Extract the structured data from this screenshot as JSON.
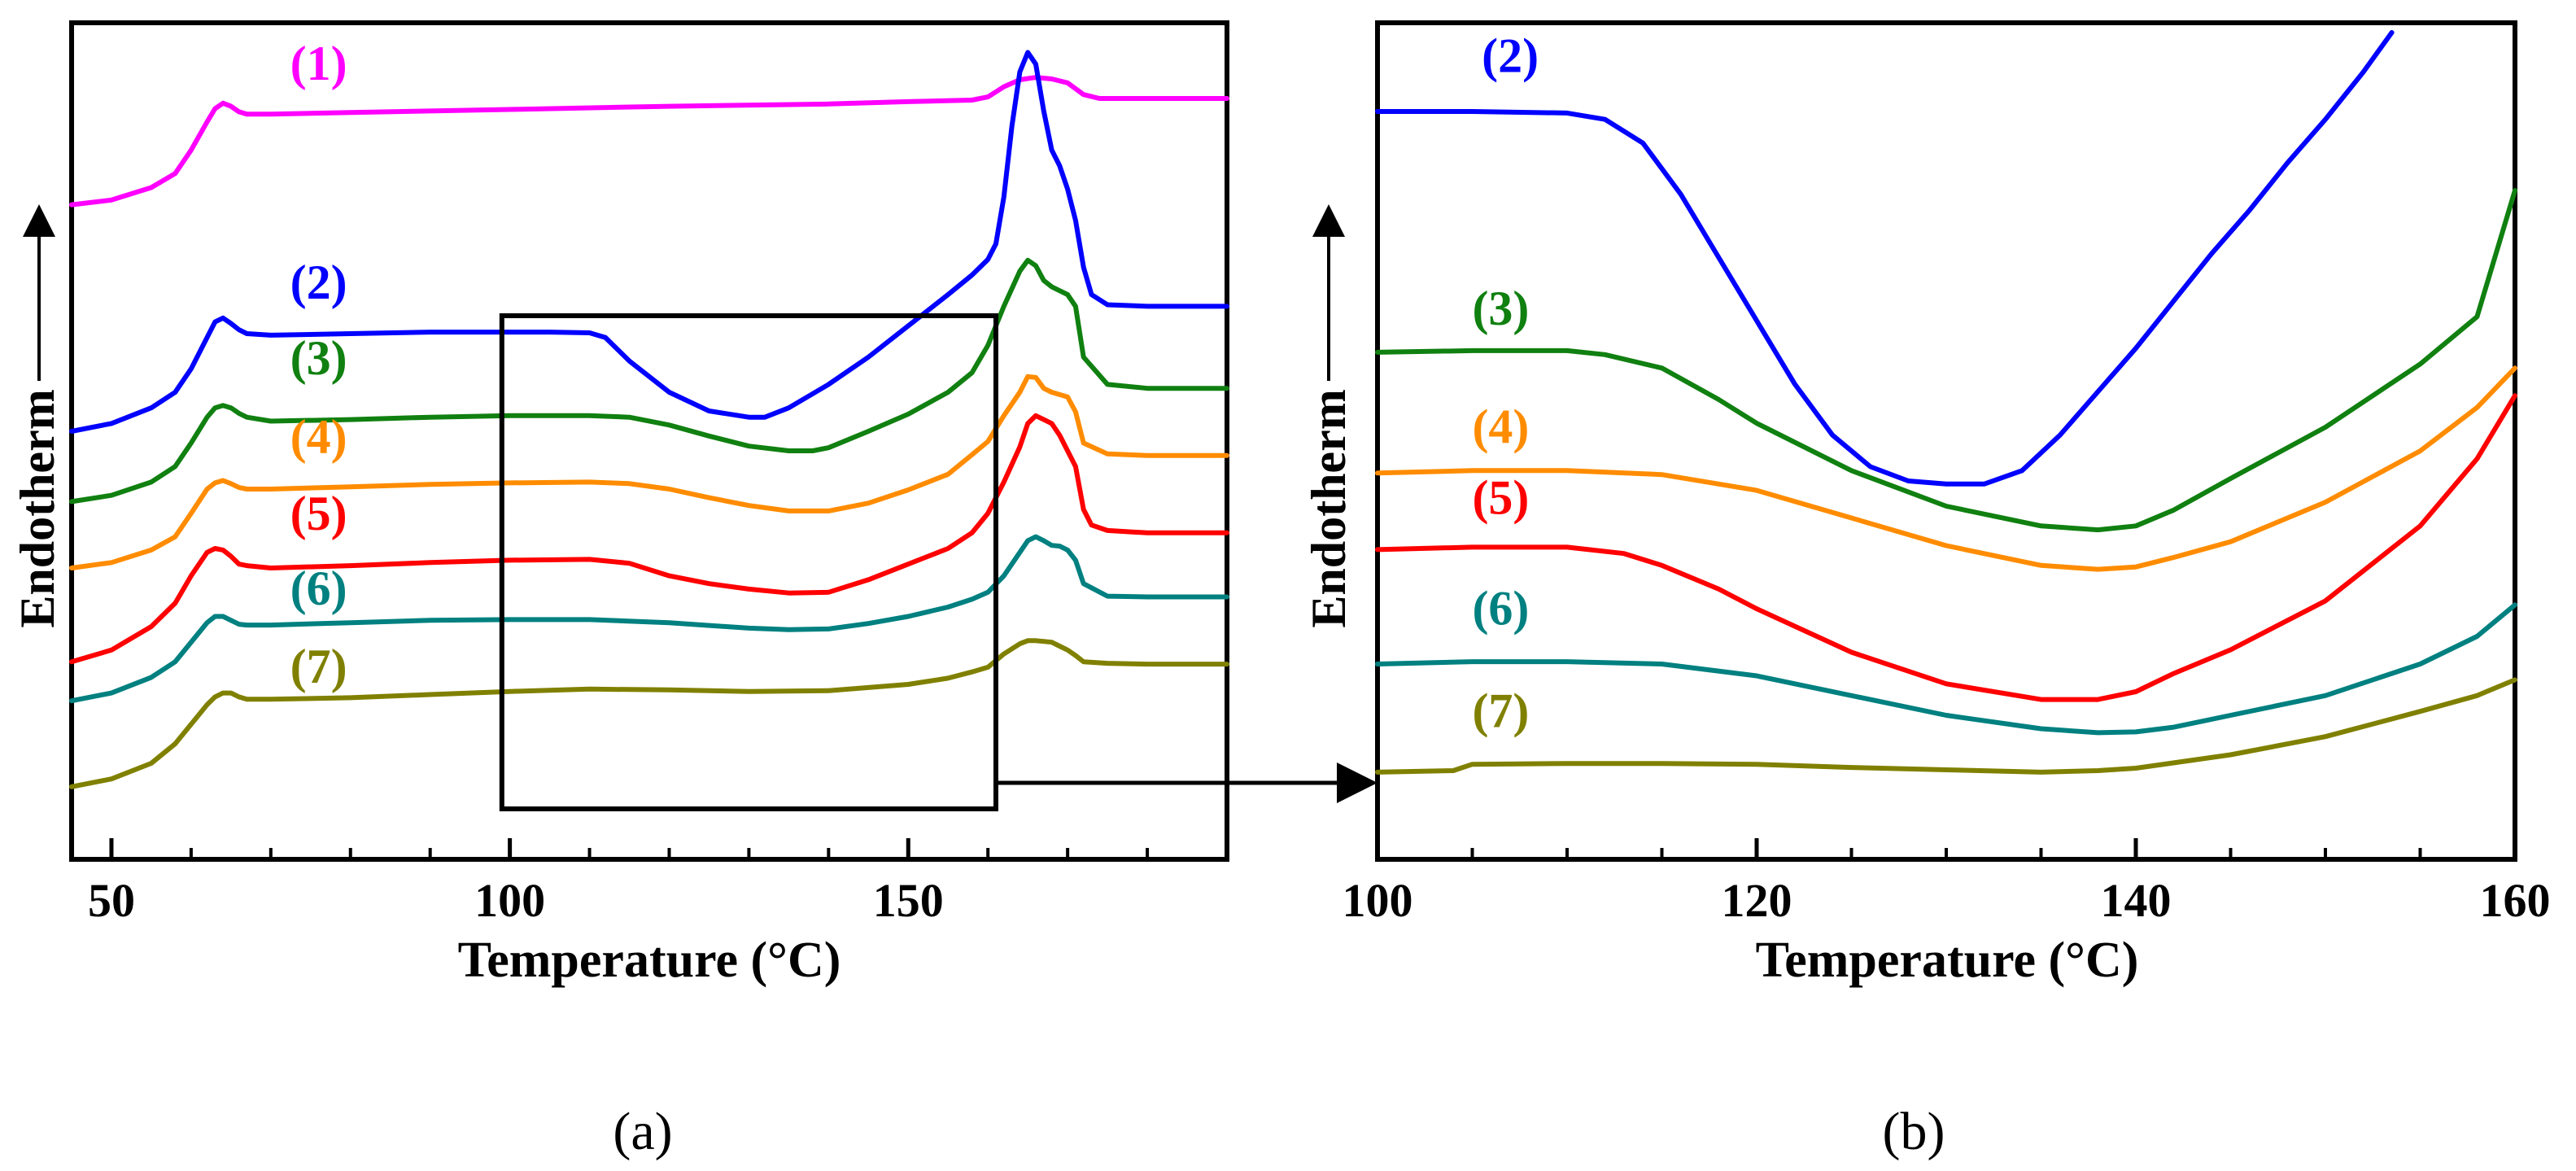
{
  "colors": {
    "s1": "#ff00ff",
    "s2": "#0000ff",
    "s3": "#108010",
    "s4": "#ff8c00",
    "s5": "#ff0000",
    "s6": "#008080",
    "s7": "#808000"
  },
  "chart_data": [
    {
      "type": "line",
      "panel_label": "(a)",
      "xlabel": "Temperature (°C)",
      "ylabel": "Endotherm",
      "xlim": [
        45,
        190
      ],
      "ylim": [
        0,
        100
      ],
      "xticks_major": [
        50,
        100,
        150
      ],
      "xticks_minor": [
        60,
        70,
        80,
        90,
        110,
        120,
        130,
        140,
        160,
        170,
        180
      ],
      "zoom_box_x": [
        99,
        161
      ],
      "series": [
        {
          "name": "(1)",
          "color": "#ff00ff",
          "x": [
            45,
            50,
            55,
            58,
            60,
            62,
            63,
            64,
            65,
            66,
            67,
            70,
            80,
            100,
            120,
            140,
            150,
            158,
            160,
            162,
            164,
            166,
            168,
            170,
            172,
            174,
            180,
            190
          ],
          "y": [
            79.0,
            79.6,
            81.2,
            83.0,
            86.0,
            89.6,
            91.3,
            92.0,
            91.6,
            90.9,
            90.6,
            90.6,
            90.8,
            91.2,
            91.6,
            91.9,
            92.2,
            92.4,
            92.8,
            94.1,
            95.0,
            95.3,
            95.1,
            94.6,
            93.1,
            92.6,
            92.6,
            92.6
          ]
        },
        {
          "name": "(2)",
          "color": "#0000ff",
          "x": [
            45,
            50,
            55,
            58,
            60,
            62,
            63,
            64,
            65,
            66,
            67,
            70,
            80,
            90,
            100,
            105,
            110,
            112,
            115,
            120,
            125,
            130,
            132,
            135,
            140,
            145,
            150,
            155,
            158,
            160,
            161,
            162,
            163,
            164,
            165,
            166,
            167,
            168,
            169,
            170,
            171,
            172,
            173,
            175,
            180,
            190
          ],
          "y": [
            50.0,
            51.0,
            53.0,
            55.0,
            58.0,
            62.0,
            64.0,
            64.5,
            63.8,
            63.0,
            62.5,
            62.3,
            62.5,
            62.7,
            62.7,
            62.7,
            62.6,
            62.0,
            59.0,
            55.0,
            52.6,
            51.8,
            51.8,
            53.0,
            56.0,
            59.5,
            63.5,
            67.5,
            70.0,
            72.0,
            74.0,
            80.0,
            89.0,
            96.0,
            98.5,
            97.0,
            91.0,
            86.0,
            84.0,
            81.0,
            77.0,
            71.0,
            67.5,
            66.2,
            66.0,
            66.0
          ]
        },
        {
          "name": "(3)",
          "color": "#108010",
          "x": [
            45,
            50,
            55,
            58,
            60,
            62,
            63,
            64,
            65,
            66,
            67,
            70,
            80,
            90,
            100,
            110,
            115,
            120,
            125,
            130,
            135,
            138,
            140,
            145,
            150,
            155,
            158,
            160,
            162,
            164,
            165,
            166,
            167,
            168,
            169,
            170,
            171,
            172,
            175,
            180,
            190
          ],
          "y": [
            41.0,
            41.8,
            43.5,
            45.5,
            48.5,
            51.8,
            53.0,
            53.3,
            53.0,
            52.3,
            51.8,
            51.3,
            51.5,
            51.8,
            52.0,
            52.0,
            51.8,
            50.8,
            49.4,
            48.1,
            47.5,
            47.5,
            47.9,
            50.0,
            52.2,
            55.0,
            57.5,
            61.0,
            66.0,
            70.5,
            71.9,
            71.2,
            69.3,
            68.5,
            68.0,
            67.5,
            66.0,
            59.5,
            56.0,
            55.5,
            55.5
          ]
        },
        {
          "name": "(4)",
          "color": "#ff8c00",
          "x": [
            45,
            50,
            55,
            58,
            60,
            62,
            63,
            64,
            65,
            66,
            67,
            70,
            80,
            90,
            100,
            110,
            115,
            120,
            125,
            130,
            135,
            140,
            145,
            150,
            155,
            158,
            160,
            162,
            164,
            165,
            166,
            167,
            168,
            169,
            170,
            171,
            172,
            175,
            180,
            190
          ],
          "y": [
            32.5,
            33.2,
            34.8,
            36.5,
            39.5,
            42.6,
            43.4,
            43.7,
            43.3,
            42.8,
            42.6,
            42.6,
            42.9,
            43.2,
            43.4,
            43.5,
            43.3,
            42.6,
            41.5,
            40.5,
            39.8,
            39.8,
            40.8,
            42.5,
            44.5,
            47.0,
            48.7,
            52.0,
            55.0,
            57.0,
            56.9,
            55.5,
            55.0,
            54.7,
            54.4,
            52.5,
            48.5,
            47.1,
            46.9,
            46.9
          ]
        },
        {
          "name": "(5)",
          "color": "#ff0000",
          "x": [
            45,
            50,
            55,
            58,
            60,
            62,
            63,
            64,
            65,
            66,
            67,
            70,
            80,
            90,
            100,
            110,
            115,
            120,
            125,
            130,
            135,
            140,
            145,
            150,
            155,
            158,
            160,
            162,
            164,
            165,
            166,
            167,
            168,
            169,
            170,
            171,
            172,
            173,
            175,
            180,
            190
          ],
          "y": [
            20.5,
            22.0,
            25.0,
            28.0,
            31.5,
            34.5,
            35.0,
            34.8,
            34.0,
            33.0,
            32.8,
            32.5,
            32.8,
            33.2,
            33.5,
            33.6,
            33.1,
            31.5,
            30.5,
            29.8,
            29.3,
            29.4,
            31.0,
            33.0,
            35.0,
            37.0,
            39.5,
            43.5,
            48.0,
            51.0,
            52.0,
            51.5,
            51.0,
            49.5,
            47.5,
            45.5,
            40.0,
            38.0,
            37.3,
            37.0,
            37.0
          ]
        },
        {
          "name": "(6)",
          "color": "#008080",
          "x": [
            45,
            50,
            55,
            58,
            60,
            62,
            63,
            64,
            65,
            66,
            67,
            70,
            80,
            90,
            100,
            110,
            120,
            130,
            135,
            140,
            145,
            150,
            155,
            158,
            160,
            162,
            164,
            165,
            166,
            167,
            168,
            169,
            170,
            171,
            172,
            175,
            180,
            190
          ],
          "y": [
            15.5,
            16.5,
            18.5,
            20.5,
            23.0,
            25.5,
            26.3,
            26.3,
            25.8,
            25.3,
            25.2,
            25.2,
            25.5,
            25.8,
            25.9,
            25.9,
            25.5,
            24.8,
            24.6,
            24.7,
            25.4,
            26.3,
            27.5,
            28.5,
            29.4,
            31.5,
            34.5,
            36.0,
            36.5,
            36.0,
            35.4,
            35.3,
            34.8,
            33.5,
            30.5,
            28.9,
            28.8,
            28.8
          ]
        },
        {
          "name": "(7)",
          "color": "#808000",
          "x": [
            45,
            50,
            55,
            58,
            60,
            62,
            63,
            64,
            65,
            66,
            67,
            70,
            80,
            90,
            100,
            110,
            120,
            130,
            140,
            150,
            155,
            158,
            160,
            162,
            164,
            165,
            166,
            167,
            168,
            169,
            170,
            171,
            172,
            175,
            180,
            190
          ],
          "y": [
            4.5,
            5.5,
            7.5,
            10.0,
            12.5,
            15.0,
            16.0,
            16.5,
            16.5,
            16.0,
            15.7,
            15.7,
            15.9,
            16.3,
            16.7,
            17.0,
            16.9,
            16.7,
            16.8,
            17.6,
            18.4,
            19.2,
            19.8,
            21.5,
            22.8,
            23.2,
            23.2,
            23.1,
            23.0,
            22.5,
            22.0,
            21.3,
            20.5,
            20.3,
            20.2,
            20.2
          ]
        }
      ],
      "series_labels": [
        {
          "text": "(1)",
          "x": 76,
          "y": 95.0
        },
        {
          "text": "(2)",
          "x": 76,
          "y": 67.0
        },
        {
          "text": "(3)",
          "x": 76,
          "y": 57.3
        },
        {
          "text": "(4)",
          "x": 76,
          "y": 47.2
        },
        {
          "text": "(5)",
          "x": 76,
          "y": 37.4
        },
        {
          "text": "(6)",
          "x": 76,
          "y": 27.8
        },
        {
          "text": "(7)",
          "x": 76,
          "y": 17.8
        }
      ]
    },
    {
      "type": "line",
      "panel_label": "(b)",
      "xlabel": "Temperature (°C)",
      "ylabel": "Endotherm",
      "xlim": [
        100,
        160
      ],
      "ylim": [
        0,
        100
      ],
      "xticks_major": [
        100,
        120,
        140,
        160
      ],
      "xticks_minor": [
        105,
        110,
        115,
        125,
        130,
        135,
        145,
        150,
        155
      ],
      "series": [
        {
          "name": "(2)",
          "color": "#0000ff",
          "x": [
            100,
            105,
            110,
            112,
            114,
            116,
            118,
            120,
            122,
            124,
            126,
            128,
            130,
            132,
            134,
            136,
            138,
            140,
            142,
            144,
            146,
            148,
            150,
            152,
            153.5
          ],
          "y": [
            90.0,
            90.0,
            89.8,
            89.0,
            86.0,
            79.5,
            71.5,
            63.5,
            55.5,
            49.0,
            45.0,
            43.2,
            42.8,
            42.8,
            44.5,
            49.0,
            54.5,
            60.0,
            66.0,
            72.0,
            77.5,
            83.5,
            89.0,
            95.0,
            100.0
          ]
        },
        {
          "name": "(3)",
          "color": "#108010",
          "x": [
            100,
            105,
            110,
            112,
            115,
            118,
            120,
            125,
            130,
            135,
            138,
            140,
            142,
            145,
            150,
            155,
            158,
            160
          ],
          "y": [
            59.5,
            59.7,
            59.7,
            59.2,
            57.5,
            53.5,
            50.5,
            44.5,
            40.0,
            37.5,
            37.0,
            37.5,
            39.5,
            43.5,
            50.0,
            58.0,
            64.0,
            80.0
          ]
        },
        {
          "name": "(4)",
          "color": "#ff8c00",
          "x": [
            100,
            105,
            110,
            115,
            120,
            125,
            130,
            135,
            138,
            140,
            142,
            145,
            150,
            155,
            158,
            160
          ],
          "y": [
            44.2,
            44.5,
            44.5,
            44.0,
            42.0,
            38.5,
            35.0,
            32.5,
            32.0,
            32.3,
            33.5,
            35.5,
            40.5,
            47.0,
            52.5,
            57.5
          ]
        },
        {
          "name": "(5)",
          "color": "#ff0000",
          "x": [
            100,
            105,
            110,
            113,
            115,
            118,
            120,
            125,
            130,
            135,
            138,
            140,
            142,
            145,
            150,
            155,
            158,
            160
          ],
          "y": [
            34.5,
            34.8,
            34.8,
            34.0,
            32.5,
            29.5,
            27.0,
            21.5,
            17.5,
            15.5,
            15.5,
            16.5,
            18.8,
            21.8,
            28.0,
            37.5,
            46.0,
            54.0
          ]
        },
        {
          "name": "(6)",
          "color": "#008080",
          "x": [
            100,
            105,
            110,
            115,
            120,
            125,
            130,
            135,
            138,
            140,
            142,
            145,
            150,
            155,
            158,
            160
          ],
          "y": [
            20.0,
            20.3,
            20.3,
            20.0,
            18.5,
            16.0,
            13.5,
            11.8,
            11.3,
            11.4,
            12.0,
            13.5,
            16.0,
            20.0,
            23.5,
            27.5
          ]
        },
        {
          "name": "(7)",
          "color": "#808000",
          "x": [
            100,
            104,
            105,
            110,
            115,
            120,
            125,
            130,
            135,
            138,
            140,
            145,
            150,
            155,
            158,
            160
          ],
          "y": [
            6.3,
            6.5,
            7.3,
            7.4,
            7.4,
            7.3,
            6.9,
            6.6,
            6.3,
            6.5,
            6.8,
            8.5,
            10.8,
            14.0,
            16.0,
            18.0
          ]
        }
      ],
      "series_labels": [
        {
          "text": "(2)",
          "x": 107,
          "y": 95.0
        },
        {
          "text": "(3)",
          "x": 106.5,
          "y": 63.0
        },
        {
          "text": "(4)",
          "x": 106.5,
          "y": 48.0
        },
        {
          "text": "(5)",
          "x": 106.5,
          "y": 39.0
        },
        {
          "text": "(6)",
          "x": 106.5,
          "y": 25.0
        },
        {
          "text": "(7)",
          "x": 106.5,
          "y": 12.0
        }
      ]
    }
  ]
}
